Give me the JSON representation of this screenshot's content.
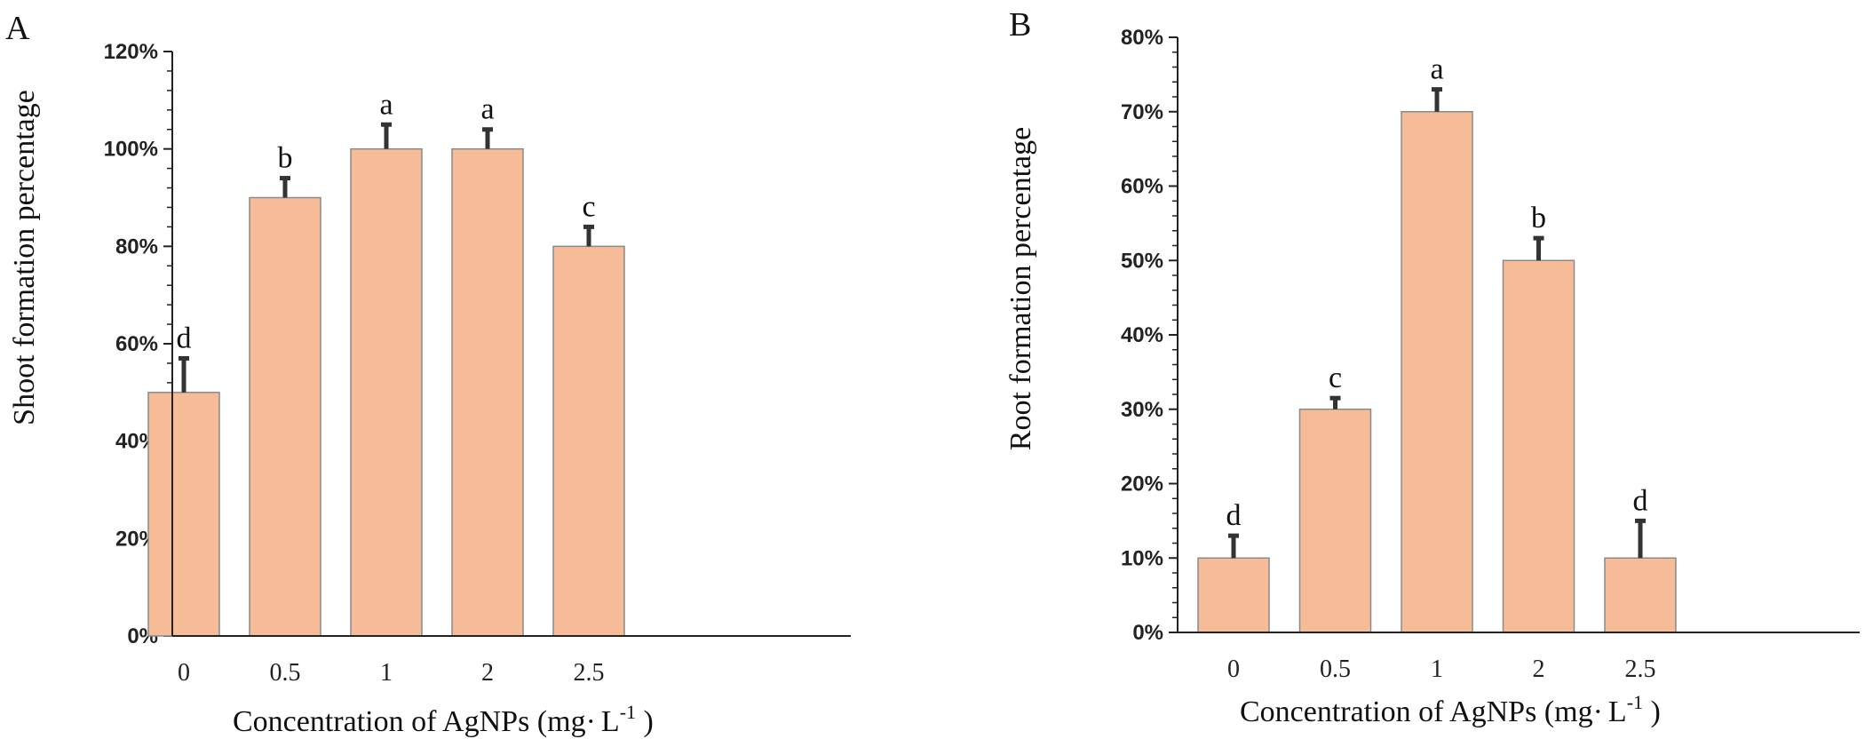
{
  "chart_data": [
    {
      "panel": "A",
      "type": "bar",
      "categories": [
        "0",
        "0.5",
        "1",
        "2",
        "2.5"
      ],
      "values": [
        50,
        90,
        100,
        100,
        80
      ],
      "errors": [
        7,
        4,
        5,
        4,
        4
      ],
      "letters": [
        "d",
        "b",
        "a",
        "a",
        "c"
      ],
      "ylabel": "Shoot formation percentage",
      "xlabel_main": "Concentration of  AgNPs (mg",
      "xlabel_unit": "L",
      "xlabel_exp": "-1",
      "xlabel_end": " )",
      "ylim": [
        0,
        120
      ],
      "yticks": [
        "0%",
        "20%",
        "40%",
        "60%",
        "80%",
        "100%",
        "120%"
      ],
      "ytick_values": [
        0,
        20,
        40,
        60,
        80,
        100,
        120
      ]
    },
    {
      "panel": "B",
      "type": "bar",
      "categories": [
        "0",
        "0.5",
        "1",
        "2",
        "2.5"
      ],
      "values": [
        10,
        30,
        70,
        50,
        10
      ],
      "errors": [
        3,
        1.5,
        3,
        3,
        5
      ],
      "letters": [
        "d",
        "c",
        "a",
        "b",
        "d"
      ],
      "ylabel": "Root formation percentage",
      "xlabel_main": "Concentration of  AgNPs (mg",
      "xlabel_unit": "L",
      "xlabel_exp": "-1",
      "xlabel_end": " )",
      "ylim": [
        0,
        80
      ],
      "yticks": [
        "0%",
        "10%",
        "20%",
        "30%",
        "40%",
        "50%",
        "60%",
        "70%",
        "80%"
      ],
      "ytick_values": [
        0,
        10,
        20,
        30,
        40,
        50,
        60,
        70,
        80
      ]
    }
  ],
  "colors": {
    "bar_fill": "#f6bc98",
    "bar_stroke": "#8a8a8a",
    "error": "#333333",
    "axis": "#222222"
  }
}
